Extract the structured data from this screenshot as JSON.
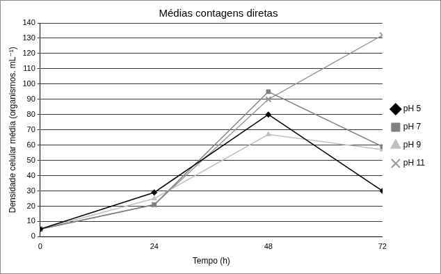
{
  "chart_data": {
    "type": "line",
    "title": "Médias contagens diretas",
    "x_label": "Tempo (h)",
    "y_label": "Densidade celular média (organismos. mL⁻¹)",
    "x": [
      0,
      24,
      48,
      72
    ],
    "xlim": [
      0,
      72
    ],
    "xticks": [
      0,
      24,
      48,
      72
    ],
    "ylim": [
      0,
      140
    ],
    "yticks": [
      0,
      10,
      20,
      30,
      40,
      50,
      60,
      70,
      80,
      90,
      100,
      110,
      120,
      130,
      140
    ],
    "grid": true,
    "legend": "right",
    "series": [
      {
        "name": "pH 5",
        "color": "#000000",
        "marker": "diamond",
        "values": [
          5,
          29,
          80,
          30
        ]
      },
      {
        "name": "pH 7",
        "color": "#7f7f7f",
        "marker": "square",
        "values": [
          5,
          21,
          95,
          59
        ]
      },
      {
        "name": "pH 9",
        "color": "#bfbfbf",
        "marker": "triangle",
        "values": [
          5,
          25,
          67,
          57
        ]
      },
      {
        "name": "pH 11",
        "color": "#969696",
        "marker": "x",
        "values": [
          5,
          21,
          90,
          132
        ]
      }
    ]
  }
}
